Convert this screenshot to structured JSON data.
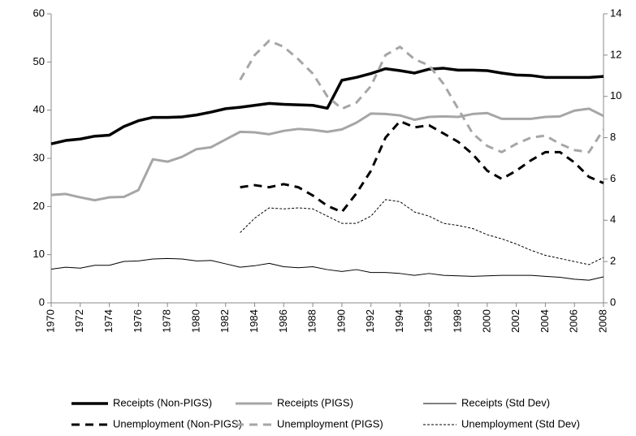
{
  "chart_data": {
    "type": "line",
    "x": [
      1970,
      1971,
      1972,
      1973,
      1974,
      1975,
      1976,
      1977,
      1978,
      1979,
      1980,
      1981,
      1982,
      1983,
      1984,
      1985,
      1986,
      1987,
      1988,
      1989,
      1990,
      1991,
      1992,
      1993,
      1994,
      1995,
      1996,
      1997,
      1998,
      1999,
      2000,
      2001,
      2002,
      2003,
      2004,
      2005,
      2006,
      2007,
      2008
    ],
    "xlim": [
      1970,
      2008
    ],
    "xticks": [
      1970,
      1972,
      1974,
      1976,
      1978,
      1980,
      1982,
      1984,
      1986,
      1988,
      1990,
      1992,
      1994,
      1996,
      1998,
      2000,
      2002,
      2004,
      2006,
      2008
    ],
    "ylim": [
      0,
      60
    ],
    "yticks": [
      0,
      10,
      20,
      30,
      40,
      50,
      60
    ],
    "y2lim": [
      0,
      14
    ],
    "y2ticks": [
      0,
      2,
      4,
      6,
      8,
      10,
      12,
      14
    ],
    "legend": "bottom",
    "series": [
      {
        "name": "Receipts (Non-PIGS)",
        "color": "#000000",
        "width": 3.5,
        "dash": "solid",
        "values": [
          33,
          33.7,
          34,
          34.6,
          34.8,
          36.6,
          37.8,
          38.5,
          38.5,
          38.6,
          39,
          39.6,
          40.3,
          40.6,
          41,
          41.4,
          41.2,
          41.1,
          41,
          40.4,
          46.2,
          46.8,
          47.6,
          48.6,
          48.2,
          47.7,
          48.5,
          48.7,
          48.3,
          48.3,
          48.2,
          47.7,
          47.3,
          47.2,
          46.8,
          46.8,
          46.8,
          46.8,
          47
        ]
      },
      {
        "name": "Receipts (PIGS)",
        "color": "#a6a6a6",
        "width": 3,
        "dash": "solid",
        "values": [
          22.4,
          22.6,
          21.9,
          21.3,
          21.9,
          22,
          23.4,
          29.8,
          29.3,
          30.3,
          31.9,
          32.3,
          33.9,
          35.5,
          35.4,
          35,
          35.7,
          36.1,
          35.9,
          35.5,
          36,
          37.4,
          39.3,
          39.2,
          38.9,
          38,
          38.6,
          38.7,
          38.6,
          39.2,
          39.4,
          38.2,
          38.2,
          38.2,
          38.6,
          38.7,
          39.9,
          40.3,
          38.8
        ]
      },
      {
        "name": "Receipts (Std Dev)",
        "color": "#000000",
        "width": 1,
        "dash": "solid",
        "values": [
          7,
          7.4,
          7.2,
          7.8,
          7.8,
          8.6,
          8.7,
          9.1,
          9.2,
          9.1,
          8.7,
          8.8,
          8.1,
          7.4,
          7.7,
          8.2,
          7.5,
          7.3,
          7.5,
          6.9,
          6.5,
          6.9,
          6.3,
          6.3,
          6.1,
          5.7,
          6.1,
          5.7,
          5.6,
          5.5,
          5.6,
          5.7,
          5.7,
          5.7,
          5.5,
          5.3,
          4.9,
          4.7,
          5.4
        ]
      },
      {
        "name": "Unemployment (Non-PIGS)",
        "color": "#000000",
        "width": 3,
        "dash": "dashed",
        "axis": "y2",
        "values": [
          null,
          null,
          null,
          null,
          null,
          null,
          null,
          null,
          null,
          null,
          null,
          null,
          null,
          5.6,
          5.7,
          5.6,
          5.75,
          5.6,
          5.2,
          4.7,
          4.4,
          5.3,
          6.4,
          8,
          8.8,
          8.5,
          8.6,
          8.2,
          7.8,
          7.2,
          6.4,
          6,
          6.4,
          6.9,
          7.3,
          7.3,
          6.8,
          6.1,
          5.8
        ]
      },
      {
        "name": "Unemployment (PIGS)",
        "color": "#a6a6a6",
        "width": 3,
        "dash": "dashed",
        "axis": "y2",
        "values": [
          null,
          null,
          null,
          null,
          null,
          null,
          null,
          null,
          null,
          null,
          null,
          null,
          null,
          10.8,
          12,
          12.7,
          12.4,
          11.8,
          11.1,
          10,
          9.4,
          9.7,
          10.5,
          12,
          12.4,
          11.8,
          11.5,
          10.6,
          9.4,
          8.2,
          7.6,
          7.3,
          7.7,
          8,
          8.1,
          7.7,
          7.4,
          7.3,
          8.4
        ]
      },
      {
        "name": "Unemployment (Std Dev)",
        "color": "#000000",
        "width": 1,
        "dash": "dotted",
        "axis": "y2",
        "values": [
          null,
          null,
          null,
          null,
          null,
          null,
          null,
          null,
          null,
          null,
          null,
          null,
          null,
          3.4,
          4.1,
          4.6,
          4.55,
          4.6,
          4.55,
          4.2,
          3.85,
          3.85,
          4.2,
          5,
          4.9,
          4.4,
          4.2,
          3.85,
          3.75,
          3.6,
          3.3,
          3.1,
          2.85,
          2.55,
          2.3,
          2.15,
          2,
          1.85,
          2.2
        ]
      }
    ]
  }
}
